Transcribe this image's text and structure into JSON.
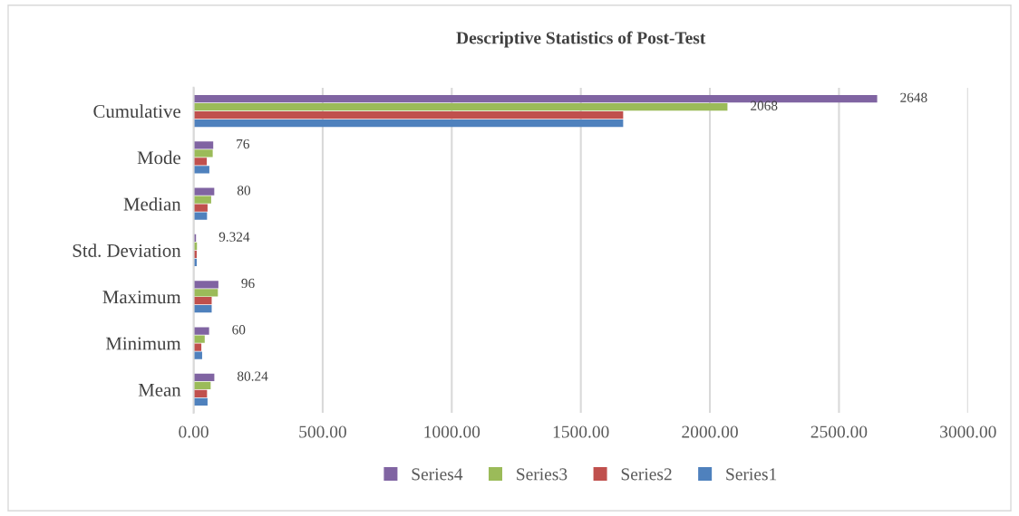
{
  "chart_data": {
    "type": "bar",
    "orientation": "horizontal",
    "title": "Descriptive Statistics of Post-Test",
    "categories": [
      "Cumulative",
      "Mode",
      "Median",
      "Std. Deviation",
      "Maximum",
      "Minimum",
      "Mean"
    ],
    "series": [
      {
        "name": "Series4",
        "color": "#8064a2",
        "values": [
          2648,
          76,
          80,
          9.324,
          96,
          60,
          80.24
        ],
        "value_labels": [
          "2648",
          "76",
          "80",
          "9.324",
          "96",
          "60",
          "80.24"
        ]
      },
      {
        "name": "Series3",
        "color": "#9bbb59",
        "values": [
          2068,
          74,
          68,
          13,
          94,
          43,
          66
        ],
        "value_labels": [
          "2068",
          null,
          null,
          null,
          null,
          null,
          null
        ]
      },
      {
        "name": "Series2",
        "color": "#c0504d",
        "values": [
          1664,
          51,
          54,
          12,
          70,
          30,
          52
        ]
      },
      {
        "name": "Series1",
        "color": "#4f81bd",
        "values": [
          1664,
          61,
          52,
          12,
          70,
          33,
          54
        ]
      }
    ],
    "xlim": [
      0,
      3000
    ],
    "xticks": [
      {
        "value": 0,
        "label": "0.00"
      },
      {
        "value": 500,
        "label": "500.00"
      },
      {
        "value": 1000,
        "label": "1000.00"
      },
      {
        "value": 1500,
        "label": "1500.00"
      },
      {
        "value": 2000,
        "label": "2000.00"
      },
      {
        "value": 2500,
        "label": "2500.00"
      },
      {
        "value": 3000,
        "label": "3000.00"
      }
    ],
    "grid": "x",
    "legend": "bottom"
  }
}
